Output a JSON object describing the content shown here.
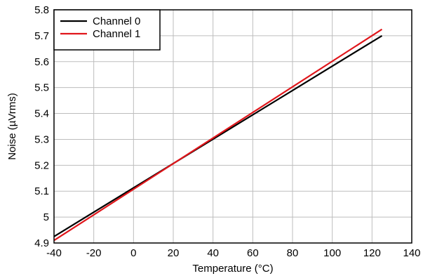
{
  "chart_data": {
    "type": "line",
    "title": "",
    "xlabel": "Temperature (°C)",
    "ylabel": "Noise (µVrms)",
    "xlim": [
      -40,
      140
    ],
    "ylim": [
      4.9,
      5.8
    ],
    "xticks": [
      "-40",
      "-20",
      "0",
      "20",
      "40",
      "60",
      "80",
      "100",
      "120",
      "140"
    ],
    "yticks": [
      "4.9",
      "5",
      "5.1",
      "5.2",
      "5.3",
      "5.4",
      "5.5",
      "5.6",
      "5.7",
      "5.8"
    ],
    "grid": true,
    "legend_position": "top-left",
    "series": [
      {
        "name": "Channel 0",
        "color": "#000000",
        "x": [
          -40,
          125
        ],
        "y": [
          4.925,
          5.7
        ]
      },
      {
        "name": "Channel 1",
        "color": "#e0161b",
        "x": [
          -40,
          125
        ],
        "y": [
          4.91,
          5.725
        ]
      }
    ]
  }
}
